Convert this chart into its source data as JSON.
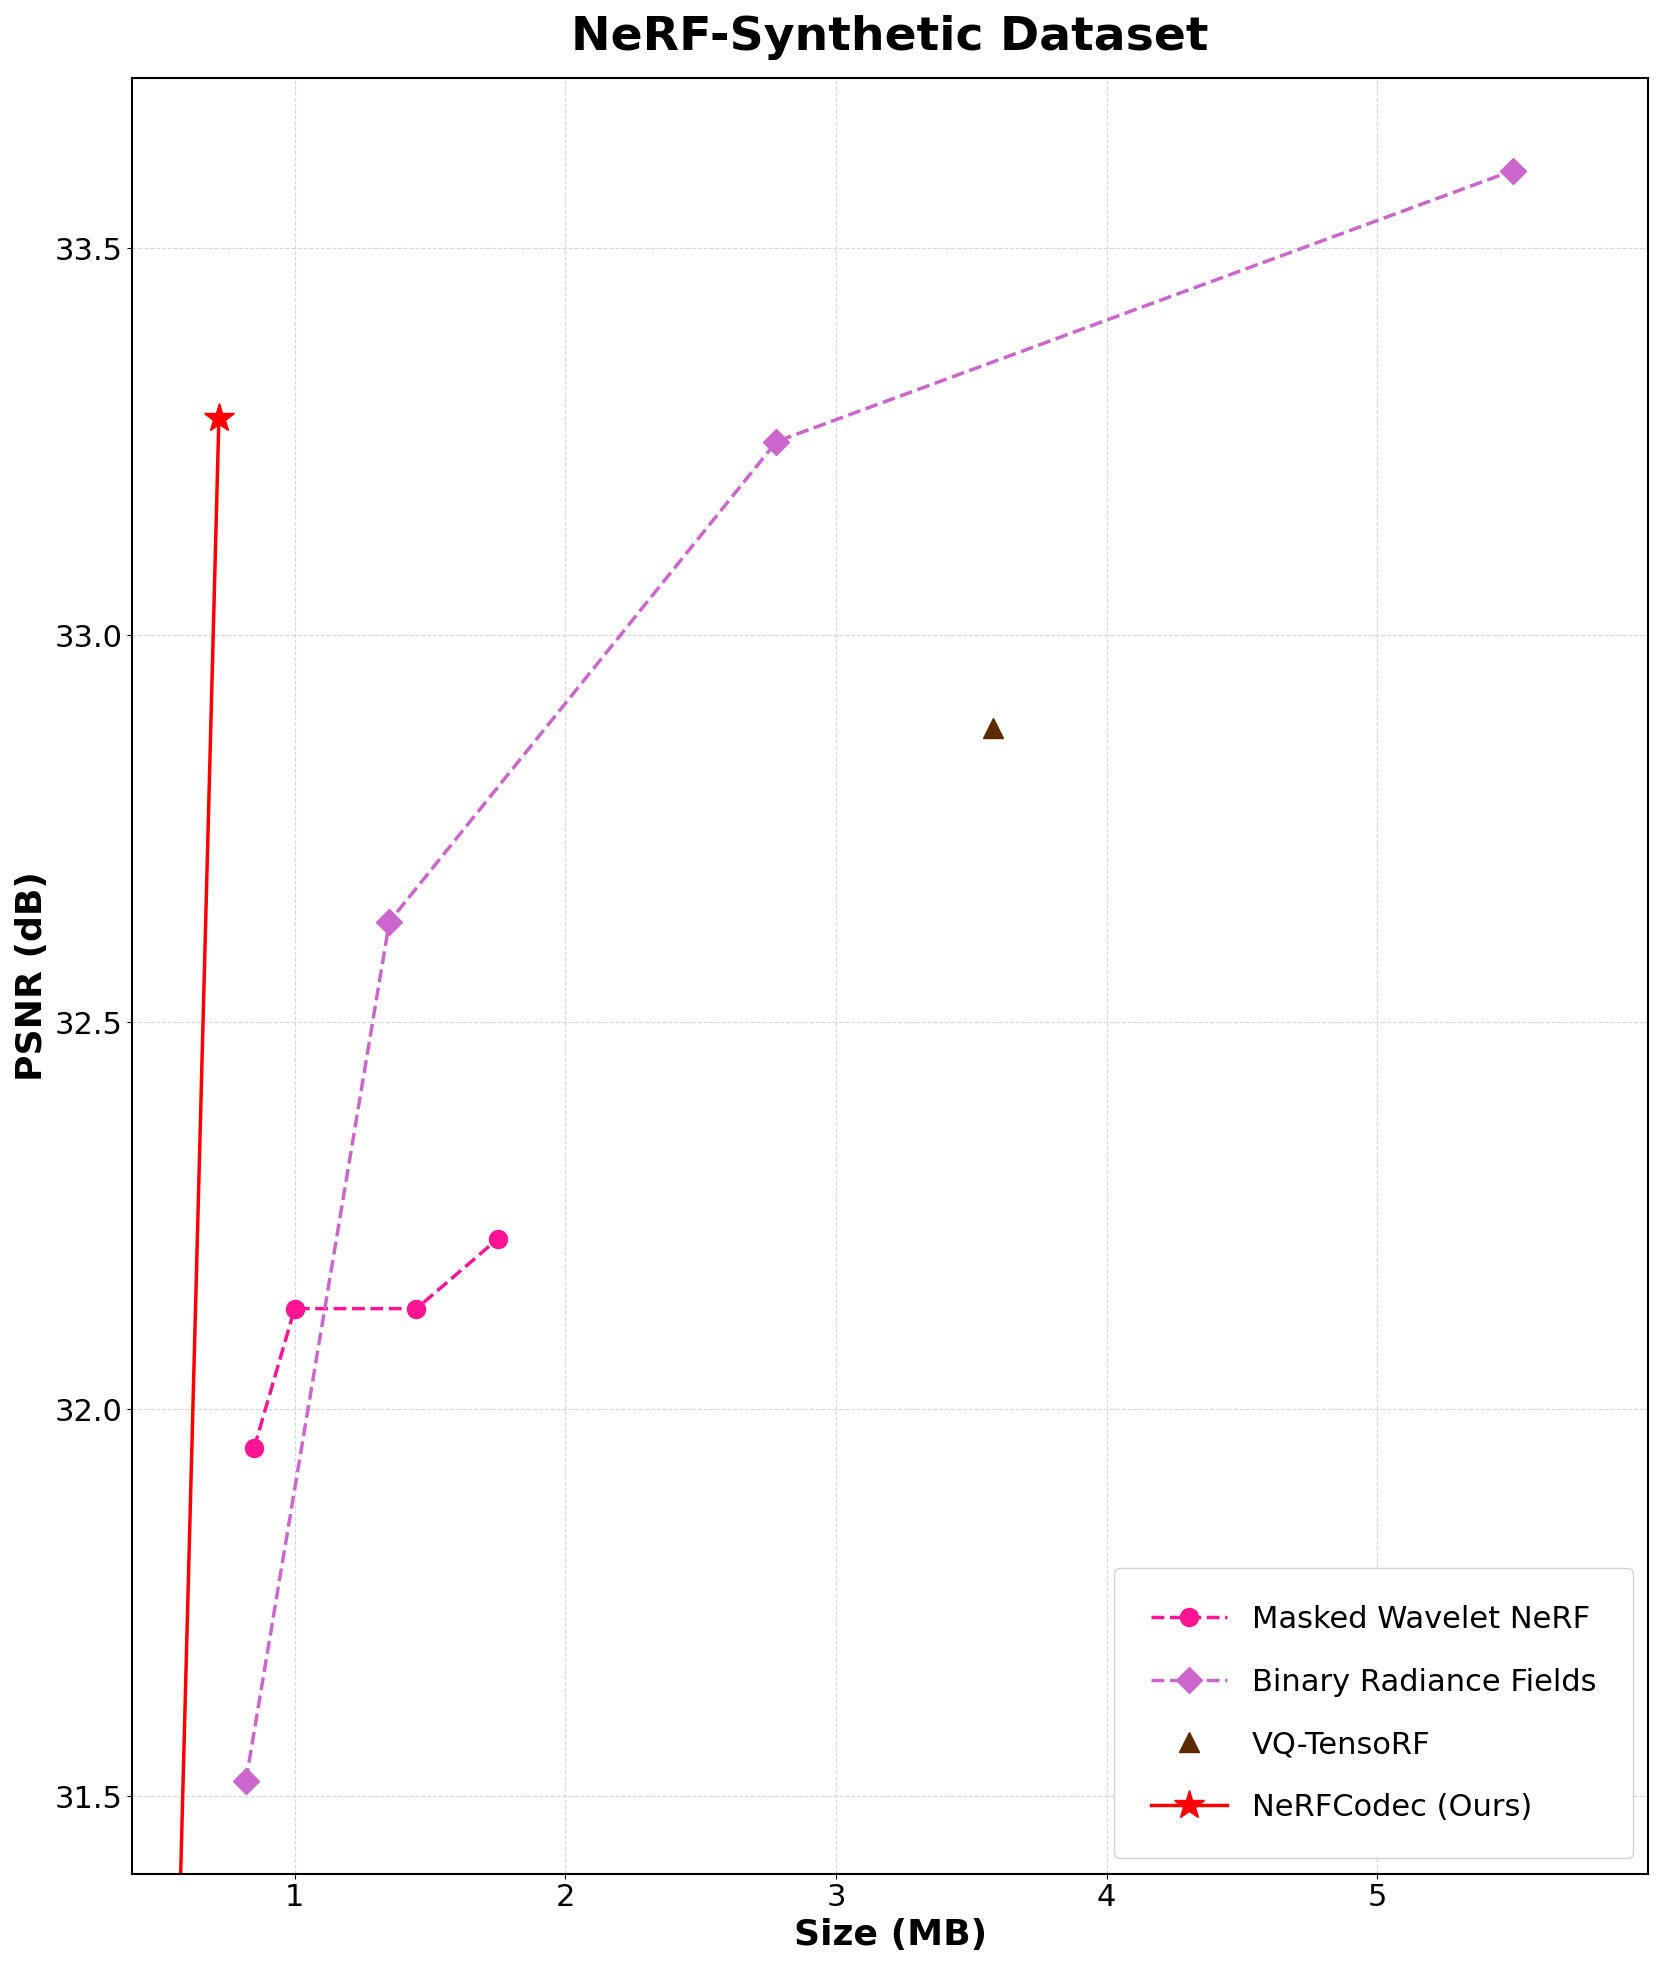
{
  "title": "NeRF-Synthetic Dataset",
  "xlabel": "Size (MB)",
  "ylabel": "PSNR (dB)",
  "xlim": [
    0.4,
    6.0
  ],
  "ylim": [
    31.4,
    33.72
  ],
  "yticks": [
    31.5,
    32.0,
    32.5,
    33.0,
    33.5
  ],
  "xticks": [
    1,
    2,
    3,
    4,
    5
  ],
  "masked_wavelet_nerf": {
    "x": [
      0.85,
      1.0,
      1.45,
      1.75
    ],
    "y": [
      31.95,
      32.13,
      32.13,
      32.22
    ],
    "color": "#FF1493",
    "label": "Masked Wavelet NeRF"
  },
  "binary_radiance_fields": {
    "x": [
      0.82,
      1.35,
      2.78,
      5.5
    ],
    "y": [
      31.52,
      32.63,
      33.25,
      33.6
    ],
    "color": "#CC66CC",
    "label": "Binary Radiance Fields"
  },
  "vq_tensorf": {
    "x": [
      3.58
    ],
    "y": [
      32.88
    ],
    "color": "#5C2A00",
    "label": "VQ-TensoRF"
  },
  "nerfcodec": {
    "x": [
      0.56,
      0.72
    ],
    "y": [
      31.15,
      33.28
    ],
    "color": "#FF0000",
    "label": "NeRFCodec (Ours)"
  },
  "title_fontsize": 34,
  "axis_label_fontsize": 26,
  "tick_fontsize": 22,
  "legend_fontsize": 22,
  "linewidth": 2.5,
  "marker_size_circle": 13,
  "marker_size_diamond": 13,
  "marker_size_triangle": 15,
  "marker_size_star": 22,
  "figsize": [
    16.63,
    19.67
  ],
  "dpi": 100
}
